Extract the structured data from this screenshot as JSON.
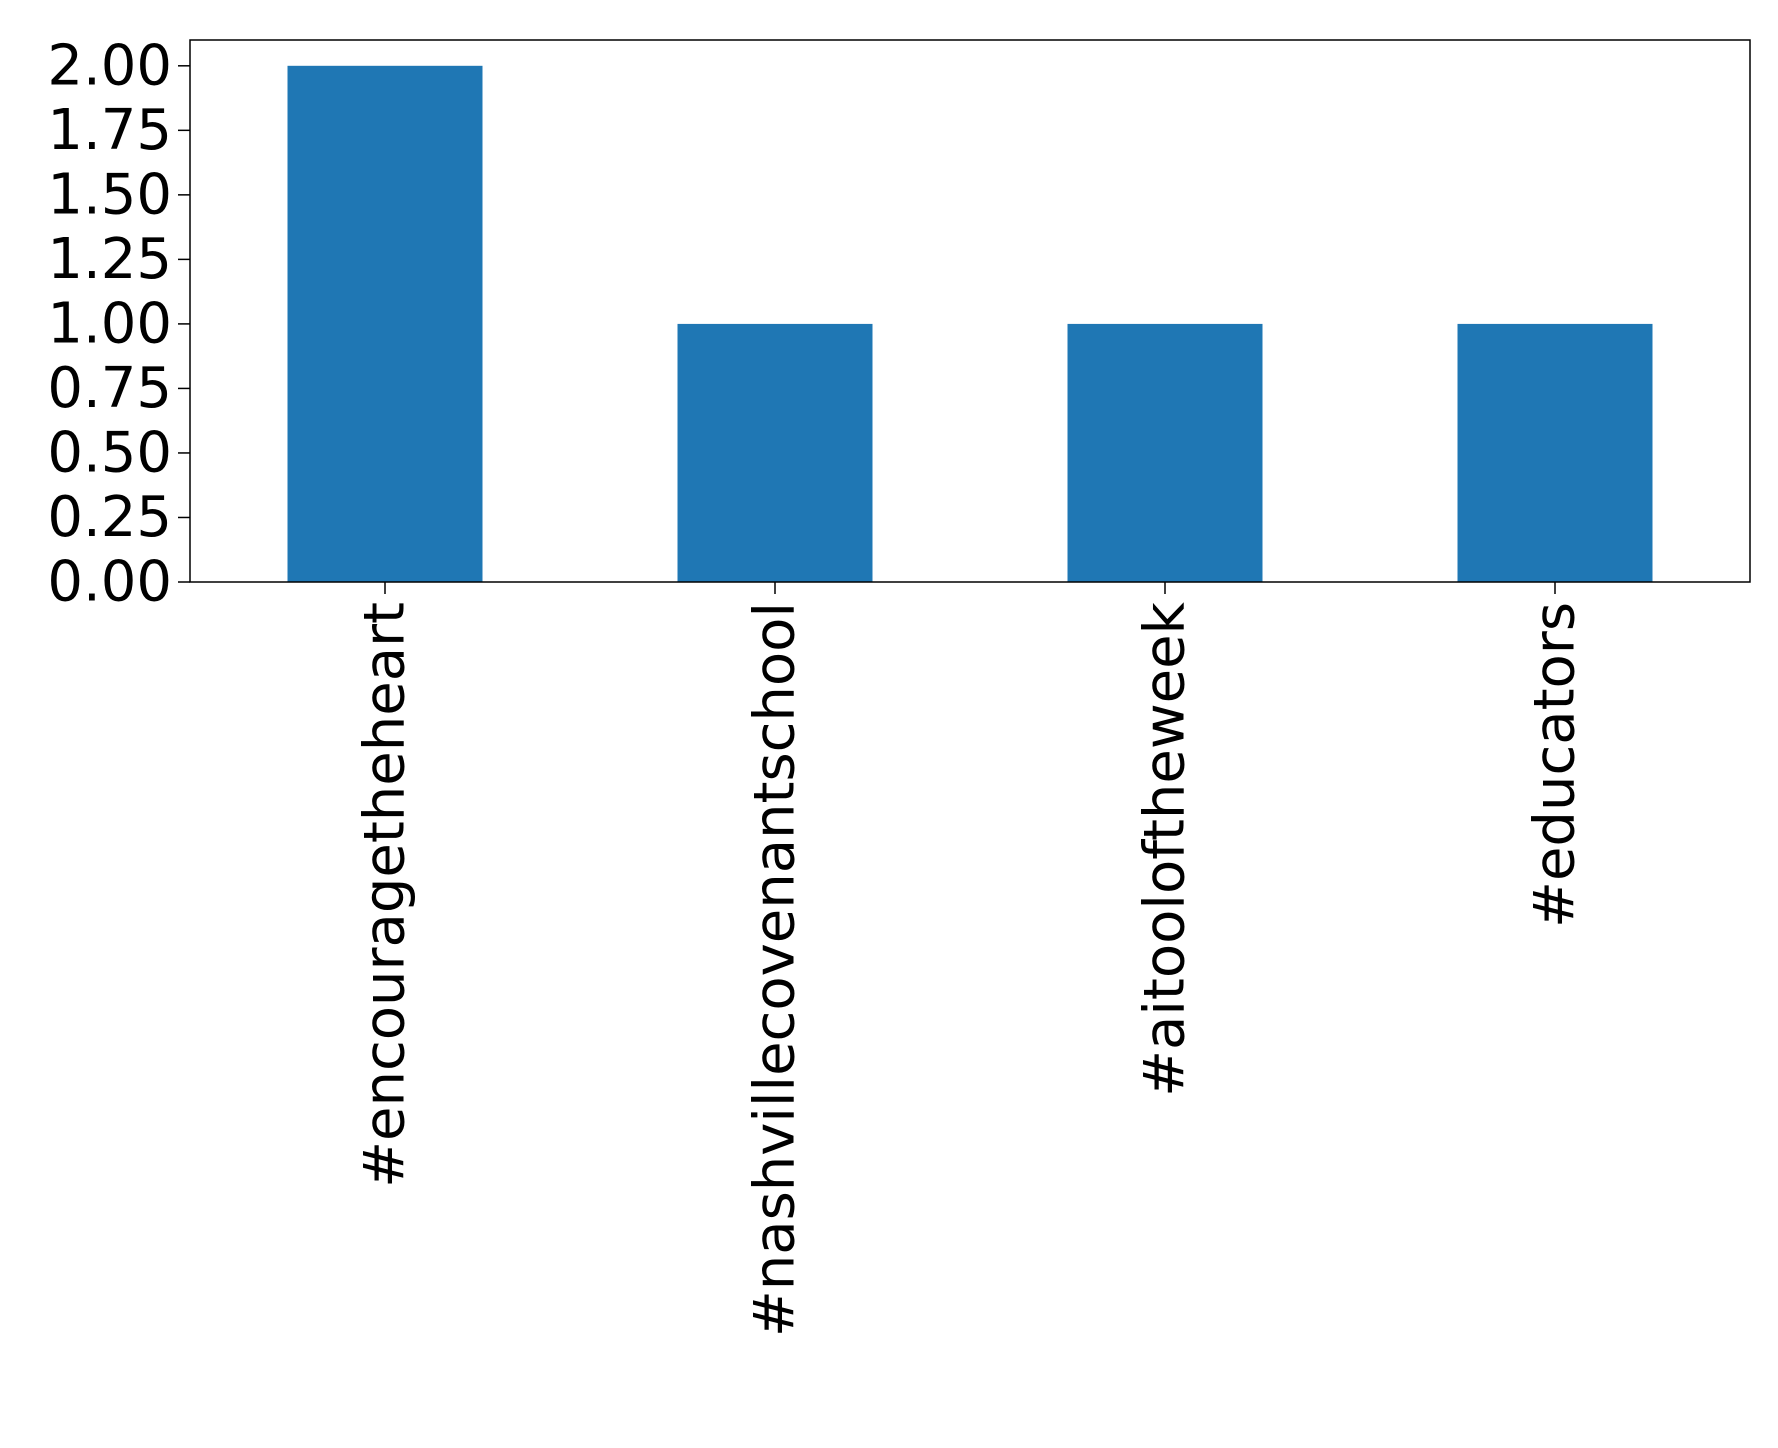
{
  "chart_data": {
    "type": "bar",
    "title": "",
    "xlabel": "",
    "ylabel": "",
    "categories": [
      "#encouragetheheart",
      "#nashvillecovenantschool",
      "#aitooloftheweek",
      "#educators"
    ],
    "values": [
      2,
      1,
      1,
      1
    ],
    "ylim": [
      0,
      2.1
    ],
    "yticks": [
      "0.00",
      "0.25",
      "0.50",
      "0.75",
      "1.00",
      "1.25",
      "1.50",
      "1.75",
      "2.00"
    ],
    "ytick_values": [
      0,
      0.25,
      0.5,
      0.75,
      1.0,
      1.25,
      1.5,
      1.75,
      2.0
    ],
    "grid": false,
    "bar_color": "#1f77b4"
  }
}
